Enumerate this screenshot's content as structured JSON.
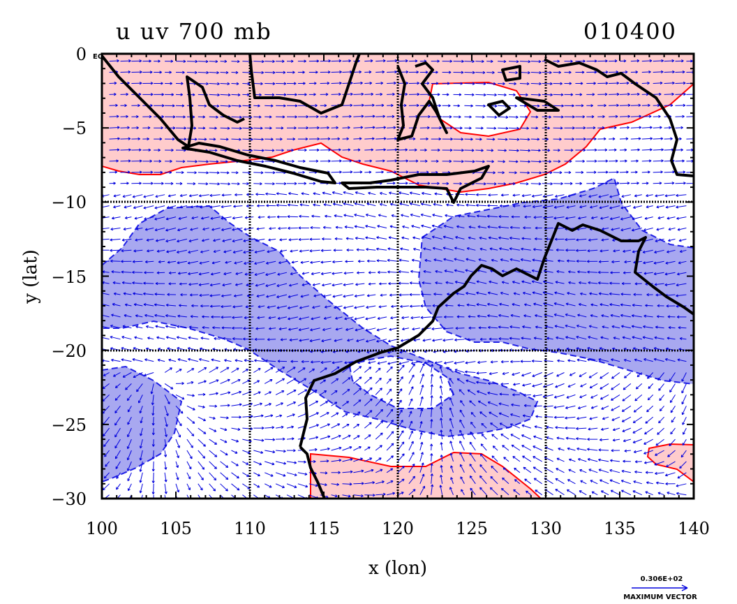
{
  "header": {
    "title": "u uv 700 mb",
    "time_code": "010400",
    "corner_note": "EQ"
  },
  "legend": {
    "max_vector_value": "0.306E+02",
    "max_vector_label": "MAXIMUM VECTOR"
  },
  "colors": {
    "positive_fill": "#ffcccc",
    "positive_line": "#ff0000",
    "negative_fill": "#a8a8f0",
    "negative_line": "#1f1fe6",
    "vector": "#0000dd",
    "coastline": "#000000"
  },
  "chart_data": {
    "type": "map",
    "variable": "u",
    "vectors": "uv",
    "level": "700 mb",
    "xlabel": "x (lon)",
    "ylabel": "y (lat)",
    "xlim": [
      100,
      140
    ],
    "ylim": [
      -30,
      0
    ],
    "x_ticks": [
      100,
      105,
      110,
      115,
      120,
      125,
      130,
      135,
      140
    ],
    "y_ticks": [
      0,
      -5,
      -10,
      -15,
      -20,
      -25,
      -30
    ],
    "x_tick_labels": [
      "100",
      "105",
      "110",
      "115",
      "120",
      "125",
      "130",
      "135",
      "140"
    ],
    "y_tick_labels": [
      "0",
      "−5",
      "−10",
      "−15",
      "−20",
      "−25",
      "−30"
    ],
    "grid": true,
    "grid_lon": [
      110,
      120,
      130
    ],
    "grid_lat": [
      -10,
      -20
    ]
  }
}
